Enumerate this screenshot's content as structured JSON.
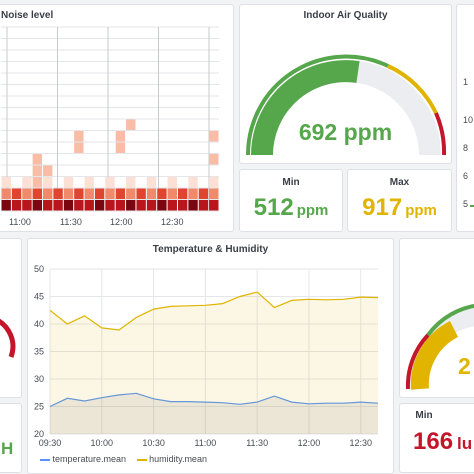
{
  "colors": {
    "green": "#56a64b",
    "yellow": "#e0b400",
    "red": "#c4162a",
    "temperature": "#5794f2",
    "humidity": "#e0b400"
  },
  "noise_panel": {
    "title": "Noise level",
    "x_ticks": [
      "11:00",
      "11:30",
      "12:00",
      "12:30"
    ]
  },
  "air_quality": {
    "title": "Indoor Air Quality",
    "value": "692",
    "unit": "ppm",
    "fill_fraction": 0.55
  },
  "air_min": {
    "title": "Min",
    "value": "512",
    "unit": "ppm"
  },
  "air_max": {
    "title": "Max",
    "value": "917",
    "unit": "ppm"
  },
  "right_axis": {
    "ticks": [
      "1",
      "10",
      "8",
      "6",
      "5"
    ]
  },
  "left_gauge_partial": {
    "unit_tail": "H"
  },
  "temp_humidity": {
    "title": "Temperature & Humidity",
    "legend": [
      {
        "label": "temperature.mean",
        "color": "#5794f2"
      },
      {
        "label": "humidity.mean",
        "color": "#e0b400"
      }
    ]
  },
  "chart_data": {
    "type": "line",
    "title": "Temperature & Humidity",
    "x": [
      "09:30",
      "09:40",
      "09:50",
      "10:00",
      "10:10",
      "10:20",
      "10:30",
      "10:40",
      "10:50",
      "11:00",
      "11:10",
      "11:20",
      "11:30",
      "11:40",
      "11:50",
      "12:00",
      "12:10",
      "12:20",
      "12:30",
      "12:40"
    ],
    "x_ticks": [
      "09:30",
      "10:00",
      "10:30",
      "11:00",
      "11:30",
      "12:00",
      "12:30"
    ],
    "y_ticks": [
      20,
      25,
      30,
      35,
      40,
      45,
      50
    ],
    "ylim": [
      20,
      50
    ],
    "series": [
      {
        "name": "temperature.mean",
        "values": [
          25.0,
          26.5,
          26.0,
          26.6,
          27.1,
          27.4,
          26.4,
          25.9,
          25.9,
          25.8,
          25.7,
          25.4,
          25.8,
          26.9,
          25.8,
          25.5,
          25.6,
          25.6,
          25.8,
          25.6
        ]
      },
      {
        "name": "humidity.mean",
        "values": [
          42.5,
          40.0,
          41.5,
          39.3,
          38.9,
          41.2,
          42.7,
          43.2,
          43.3,
          43.4,
          43.7,
          45.0,
          45.8,
          43.0,
          44.3,
          44.5,
          44.4,
          44.5,
          44.9,
          44.8
        ]
      }
    ],
    "grid": true,
    "legend": "bottom-left"
  },
  "right_gauge_partial": {
    "value_head": "2"
  },
  "light_min": {
    "title": "Min",
    "value": "166",
    "unit": "lu"
  }
}
